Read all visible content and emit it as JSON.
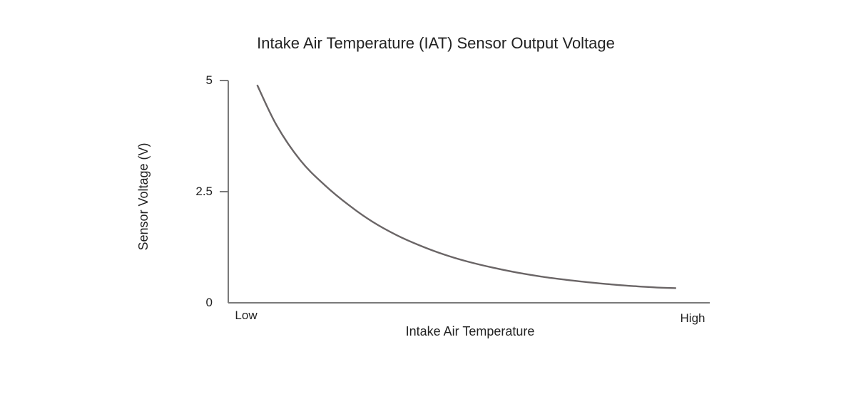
{
  "chart_data": {
    "type": "line",
    "title": "Intake Air Temperature (IAT) Sensor Output Voltage",
    "xlabel": "Intake Air Temperature",
    "ylabel": "Sensor Voltage (V)",
    "x_tick_labels": [
      "Low",
      "High"
    ],
    "y_ticks": [
      0,
      2.5,
      5
    ],
    "y_tick_labels": [
      "0",
      "2.5",
      "5"
    ],
    "xlim": [
      0,
      1
    ],
    "ylim": [
      0,
      5
    ],
    "grid": false,
    "legend": "none",
    "colors": {
      "line": "#6a6566",
      "axis": "#7a7a7a",
      "text": "#222222"
    },
    "series": [
      {
        "x": [
          0.06,
          0.1,
          0.15,
          0.2,
          0.25,
          0.3,
          0.35,
          0.4,
          0.45,
          0.5,
          0.55,
          0.6,
          0.65,
          0.7,
          0.75,
          0.8,
          0.85,
          0.9,
          0.93
        ],
        "values": [
          4.9,
          4.0,
          3.2,
          2.65,
          2.2,
          1.82,
          1.52,
          1.28,
          1.08,
          0.92,
          0.79,
          0.68,
          0.59,
          0.52,
          0.46,
          0.41,
          0.37,
          0.34,
          0.33
        ]
      }
    ]
  }
}
